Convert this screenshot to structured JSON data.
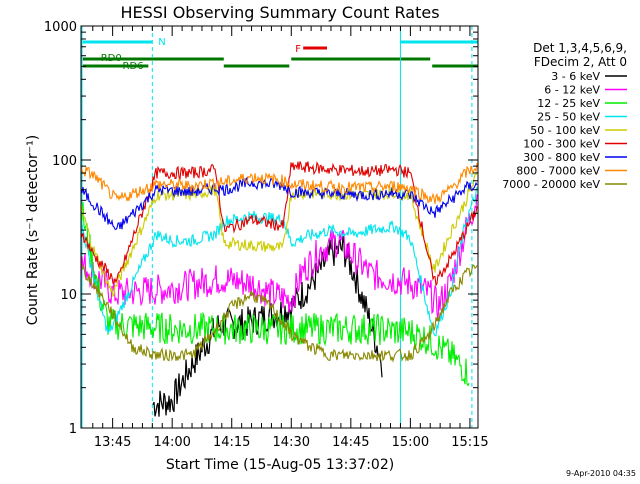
{
  "chart_data": {
    "type": "line",
    "title": "HESSI Observing Summary Count Rates",
    "xlabel": "Start Time (15-Aug-05 13:37:02)",
    "ylabel": "Count Rate (s⁻¹ detector⁻¹)",
    "yscale": "log",
    "ylim": [
      1,
      1000
    ],
    "xlim": [
      "13:37:02",
      "15:17:02"
    ],
    "x_ticks": [
      "13:45",
      "14:00",
      "14:15",
      "14:30",
      "14:45",
      "15:00",
      "15:15"
    ],
    "y_ticks": [
      "1",
      "10",
      "100",
      "1000"
    ],
    "footer": "9-Apr-2010 04:35",
    "legend": {
      "placement": "right",
      "header": [
        "Det 1,3,4,5,6,9,",
        "FDecim 2, Att 0"
      ]
    },
    "annotations": [
      {
        "label": "N",
        "color": "#00e5ee"
      },
      {
        "label": "F",
        "color": "#e00000"
      },
      {
        "label": "RD0",
        "color": "#007700"
      },
      {
        "label": "RD6",
        "color": "#007700"
      }
    ],
    "series": [
      {
        "name": "3 - 6 keV",
        "color": "#000000",
        "points": [
          [
            "13:55",
            1.5
          ],
          [
            "14:00",
            1.6
          ],
          [
            "14:05",
            3
          ],
          [
            "14:10",
            5
          ],
          [
            "14:12",
            6
          ],
          [
            "14:18",
            6
          ],
          [
            "14:25",
            7
          ],
          [
            "14:30",
            8
          ],
          [
            "14:35",
            12
          ],
          [
            "14:40",
            20
          ],
          [
            "14:43",
            22
          ],
          [
            "14:46",
            14
          ],
          [
            "14:50",
            6
          ],
          [
            "14:53",
            3
          ]
        ]
      },
      {
        "name": "6 - 12 keV",
        "color": "#ff00ff",
        "points": [
          [
            "13:37",
            17
          ],
          [
            "13:43",
            12
          ],
          [
            "13:45",
            10
          ],
          [
            "14:00",
            11
          ],
          [
            "14:12",
            13
          ],
          [
            "14:20",
            12
          ],
          [
            "14:25",
            10
          ],
          [
            "14:30",
            9
          ],
          [
            "14:33",
            15
          ],
          [
            "14:38",
            22
          ],
          [
            "14:42",
            25
          ],
          [
            "14:45",
            20
          ],
          [
            "14:50",
            14
          ],
          [
            "15:00",
            12
          ],
          [
            "15:05",
            10
          ],
          [
            "15:07",
            8
          ],
          [
            "15:10",
            12
          ],
          [
            "15:14",
            30
          ],
          [
            "15:17",
            55
          ]
        ]
      },
      {
        "name": "12 - 25 keV",
        "color": "#00ee00",
        "points": [
          [
            "13:37",
            45
          ],
          [
            "13:42",
            9
          ],
          [
            "13:44",
            6
          ],
          [
            "14:00",
            5.5
          ],
          [
            "14:10",
            5.5
          ],
          [
            "14:20",
            5.5
          ],
          [
            "14:30",
            5.5
          ],
          [
            "14:40",
            5.5
          ],
          [
            "14:50",
            5.5
          ],
          [
            "15:00",
            5.2
          ],
          [
            "15:05",
            4.5
          ],
          [
            "15:10",
            3.5
          ],
          [
            "15:15",
            2.5
          ]
        ]
      },
      {
        "name": "25 - 50 keV",
        "color": "#00e5ee",
        "points": [
          [
            "13:37",
            35
          ],
          [
            "13:42",
            8
          ],
          [
            "13:44",
            5
          ],
          [
            "13:56",
            28
          ],
          [
            "14:00",
            25
          ],
          [
            "14:05",
            25
          ],
          [
            "14:11",
            28
          ],
          [
            "14:13",
            35
          ],
          [
            "14:20",
            38
          ],
          [
            "14:28",
            36
          ],
          [
            "14:30",
            24
          ],
          [
            "14:34",
            27
          ],
          [
            "14:40",
            30
          ],
          [
            "14:45",
            28
          ],
          [
            "14:50",
            30
          ],
          [
            "14:56",
            32
          ],
          [
            "15:00",
            26
          ],
          [
            "15:06",
            5
          ],
          [
            "15:10",
            10
          ],
          [
            "15:14",
            35
          ],
          [
            "15:17",
            60
          ]
        ]
      },
      {
        "name": "50 - 100 keV",
        "color": "#cccc00",
        "points": [
          [
            "13:37",
            45
          ],
          [
            "13:40",
            22
          ],
          [
            "13:45",
            10
          ],
          [
            "13:56",
            55
          ],
          [
            "14:05",
            55
          ],
          [
            "14:11",
            60
          ],
          [
            "14:13",
            24
          ],
          [
            "14:28",
            22
          ],
          [
            "14:30",
            57
          ],
          [
            "14:40",
            56
          ],
          [
            "14:50",
            55
          ],
          [
            "14:56",
            57
          ],
          [
            "15:00",
            55
          ],
          [
            "15:06",
            15
          ],
          [
            "15:10",
            28
          ],
          [
            "15:14",
            50
          ],
          [
            "15:17",
            80
          ]
        ]
      },
      {
        "name": "100 - 300 keV",
        "color": "#e00000",
        "points": [
          [
            "13:37",
            30
          ],
          [
            "13:40",
            20
          ],
          [
            "13:46",
            12
          ],
          [
            "13:56",
            80
          ],
          [
            "14:05",
            80
          ],
          [
            "14:11",
            85
          ],
          [
            "14:13",
            30
          ],
          [
            "14:20",
            36
          ],
          [
            "14:28",
            32
          ],
          [
            "14:30",
            90
          ],
          [
            "14:40",
            85
          ],
          [
            "14:50",
            82
          ],
          [
            "14:56",
            85
          ],
          [
            "15:00",
            80
          ],
          [
            "15:06",
            12
          ],
          [
            "15:10",
            18
          ],
          [
            "15:14",
            30
          ],
          [
            "15:17",
            45
          ]
        ]
      },
      {
        "name": "300 - 800 keV",
        "color": "#0000ee",
        "points": [
          [
            "13:37",
            60
          ],
          [
            "13:40",
            48
          ],
          [
            "13:46",
            30
          ],
          [
            "13:56",
            60
          ],
          [
            "14:05",
            58
          ],
          [
            "14:11",
            62
          ],
          [
            "14:13",
            60
          ],
          [
            "14:20",
            68
          ],
          [
            "14:28",
            65
          ],
          [
            "14:30",
            58
          ],
          [
            "14:40",
            56
          ],
          [
            "14:50",
            55
          ],
          [
            "14:56",
            57
          ],
          [
            "15:00",
            55
          ],
          [
            "15:06",
            40
          ],
          [
            "15:10",
            50
          ],
          [
            "15:14",
            62
          ],
          [
            "15:17",
            65
          ]
        ]
      },
      {
        "name": "800 - 7000 keV",
        "color": "#ff8800",
        "points": [
          [
            "13:37",
            85
          ],
          [
            "13:40",
            78
          ],
          [
            "13:46",
            50
          ],
          [
            "13:56",
            66
          ],
          [
            "14:05",
            64
          ],
          [
            "14:11",
            68
          ],
          [
            "14:13",
            68
          ],
          [
            "14:20",
            75
          ],
          [
            "14:28",
            70
          ],
          [
            "14:30",
            66
          ],
          [
            "14:40",
            63
          ],
          [
            "14:50",
            62
          ],
          [
            "14:56",
            64
          ],
          [
            "15:00",
            62
          ],
          [
            "15:06",
            50
          ],
          [
            "15:10",
            60
          ],
          [
            "15:14",
            80
          ],
          [
            "15:17",
            90
          ]
        ]
      },
      {
        "name": "7000 - 20000 keV",
        "color": "#888800",
        "points": [
          [
            "13:37",
            16
          ],
          [
            "13:40",
            12
          ],
          [
            "13:44",
            8
          ],
          [
            "13:50",
            4
          ],
          [
            "13:56",
            3.5
          ],
          [
            "14:05",
            3.5
          ],
          [
            "14:10",
            5
          ],
          [
            "14:15",
            8
          ],
          [
            "14:20",
            10
          ],
          [
            "14:25",
            8
          ],
          [
            "14:30",
            5
          ],
          [
            "14:35",
            4
          ],
          [
            "14:40",
            3.5
          ],
          [
            "14:50",
            3.5
          ],
          [
            "15:00",
            3.5
          ],
          [
            "15:05",
            5
          ],
          [
            "15:10",
            10
          ],
          [
            "15:14",
            14
          ],
          [
            "15:17",
            16
          ]
        ]
      }
    ]
  }
}
